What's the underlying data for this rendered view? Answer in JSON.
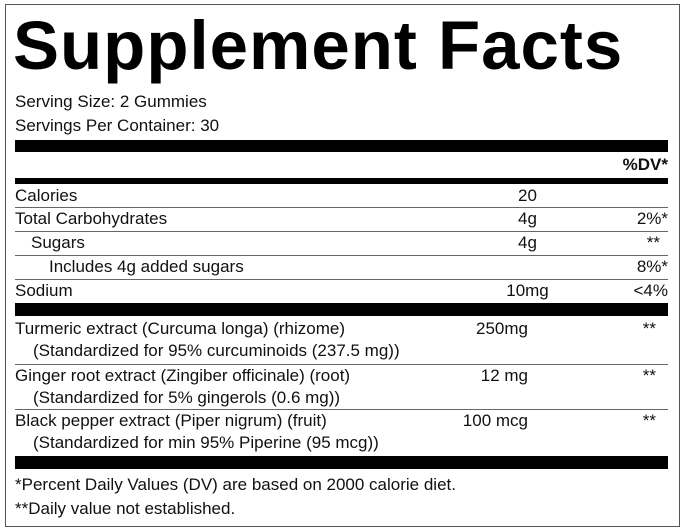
{
  "title": "Supplement Facts",
  "serving_size": "Serving Size: 2 Gummies",
  "servings_per_container": "Servings Per Container: 30",
  "dv_header": "%DV*",
  "nutrients": [
    {
      "name": "Calories",
      "amount": "20",
      "dv": ""
    },
    {
      "name": "Total Carbohydrates",
      "amount": "4g",
      "dv": "2%*"
    },
    {
      "name": "Sugars",
      "amount": "4g",
      "dv": "**"
    },
    {
      "name": "Includes 4g added sugars",
      "amount": "",
      "dv": "8%*"
    },
    {
      "name": "Sodium",
      "amount": "10mg",
      "dv": "<4%"
    }
  ],
  "ingredients": [
    {
      "name": "Turmeric extract (Curcuma longa) (rhizome)",
      "detail": "(Standardized for 95% curcuminoids (237.5 mg))",
      "amount": "250mg",
      "dv": "**"
    },
    {
      "name": "Ginger root extract (Zingiber officinale) (root)",
      "detail": "(Standardized for 5% gingerols (0.6 mg))",
      "amount": "12 mg",
      "dv": "**"
    },
    {
      "name": "Black pepper extract (Piper nigrum) (fruit)",
      "detail": "(Standardized for min 95% Piperine (95 mcg))",
      "amount": "100 mcg",
      "dv": "**"
    }
  ],
  "footnotes": [
    "*Percent Daily Values (DV) are based on 2000 calorie diet.",
    "**Daily value not established."
  ]
}
